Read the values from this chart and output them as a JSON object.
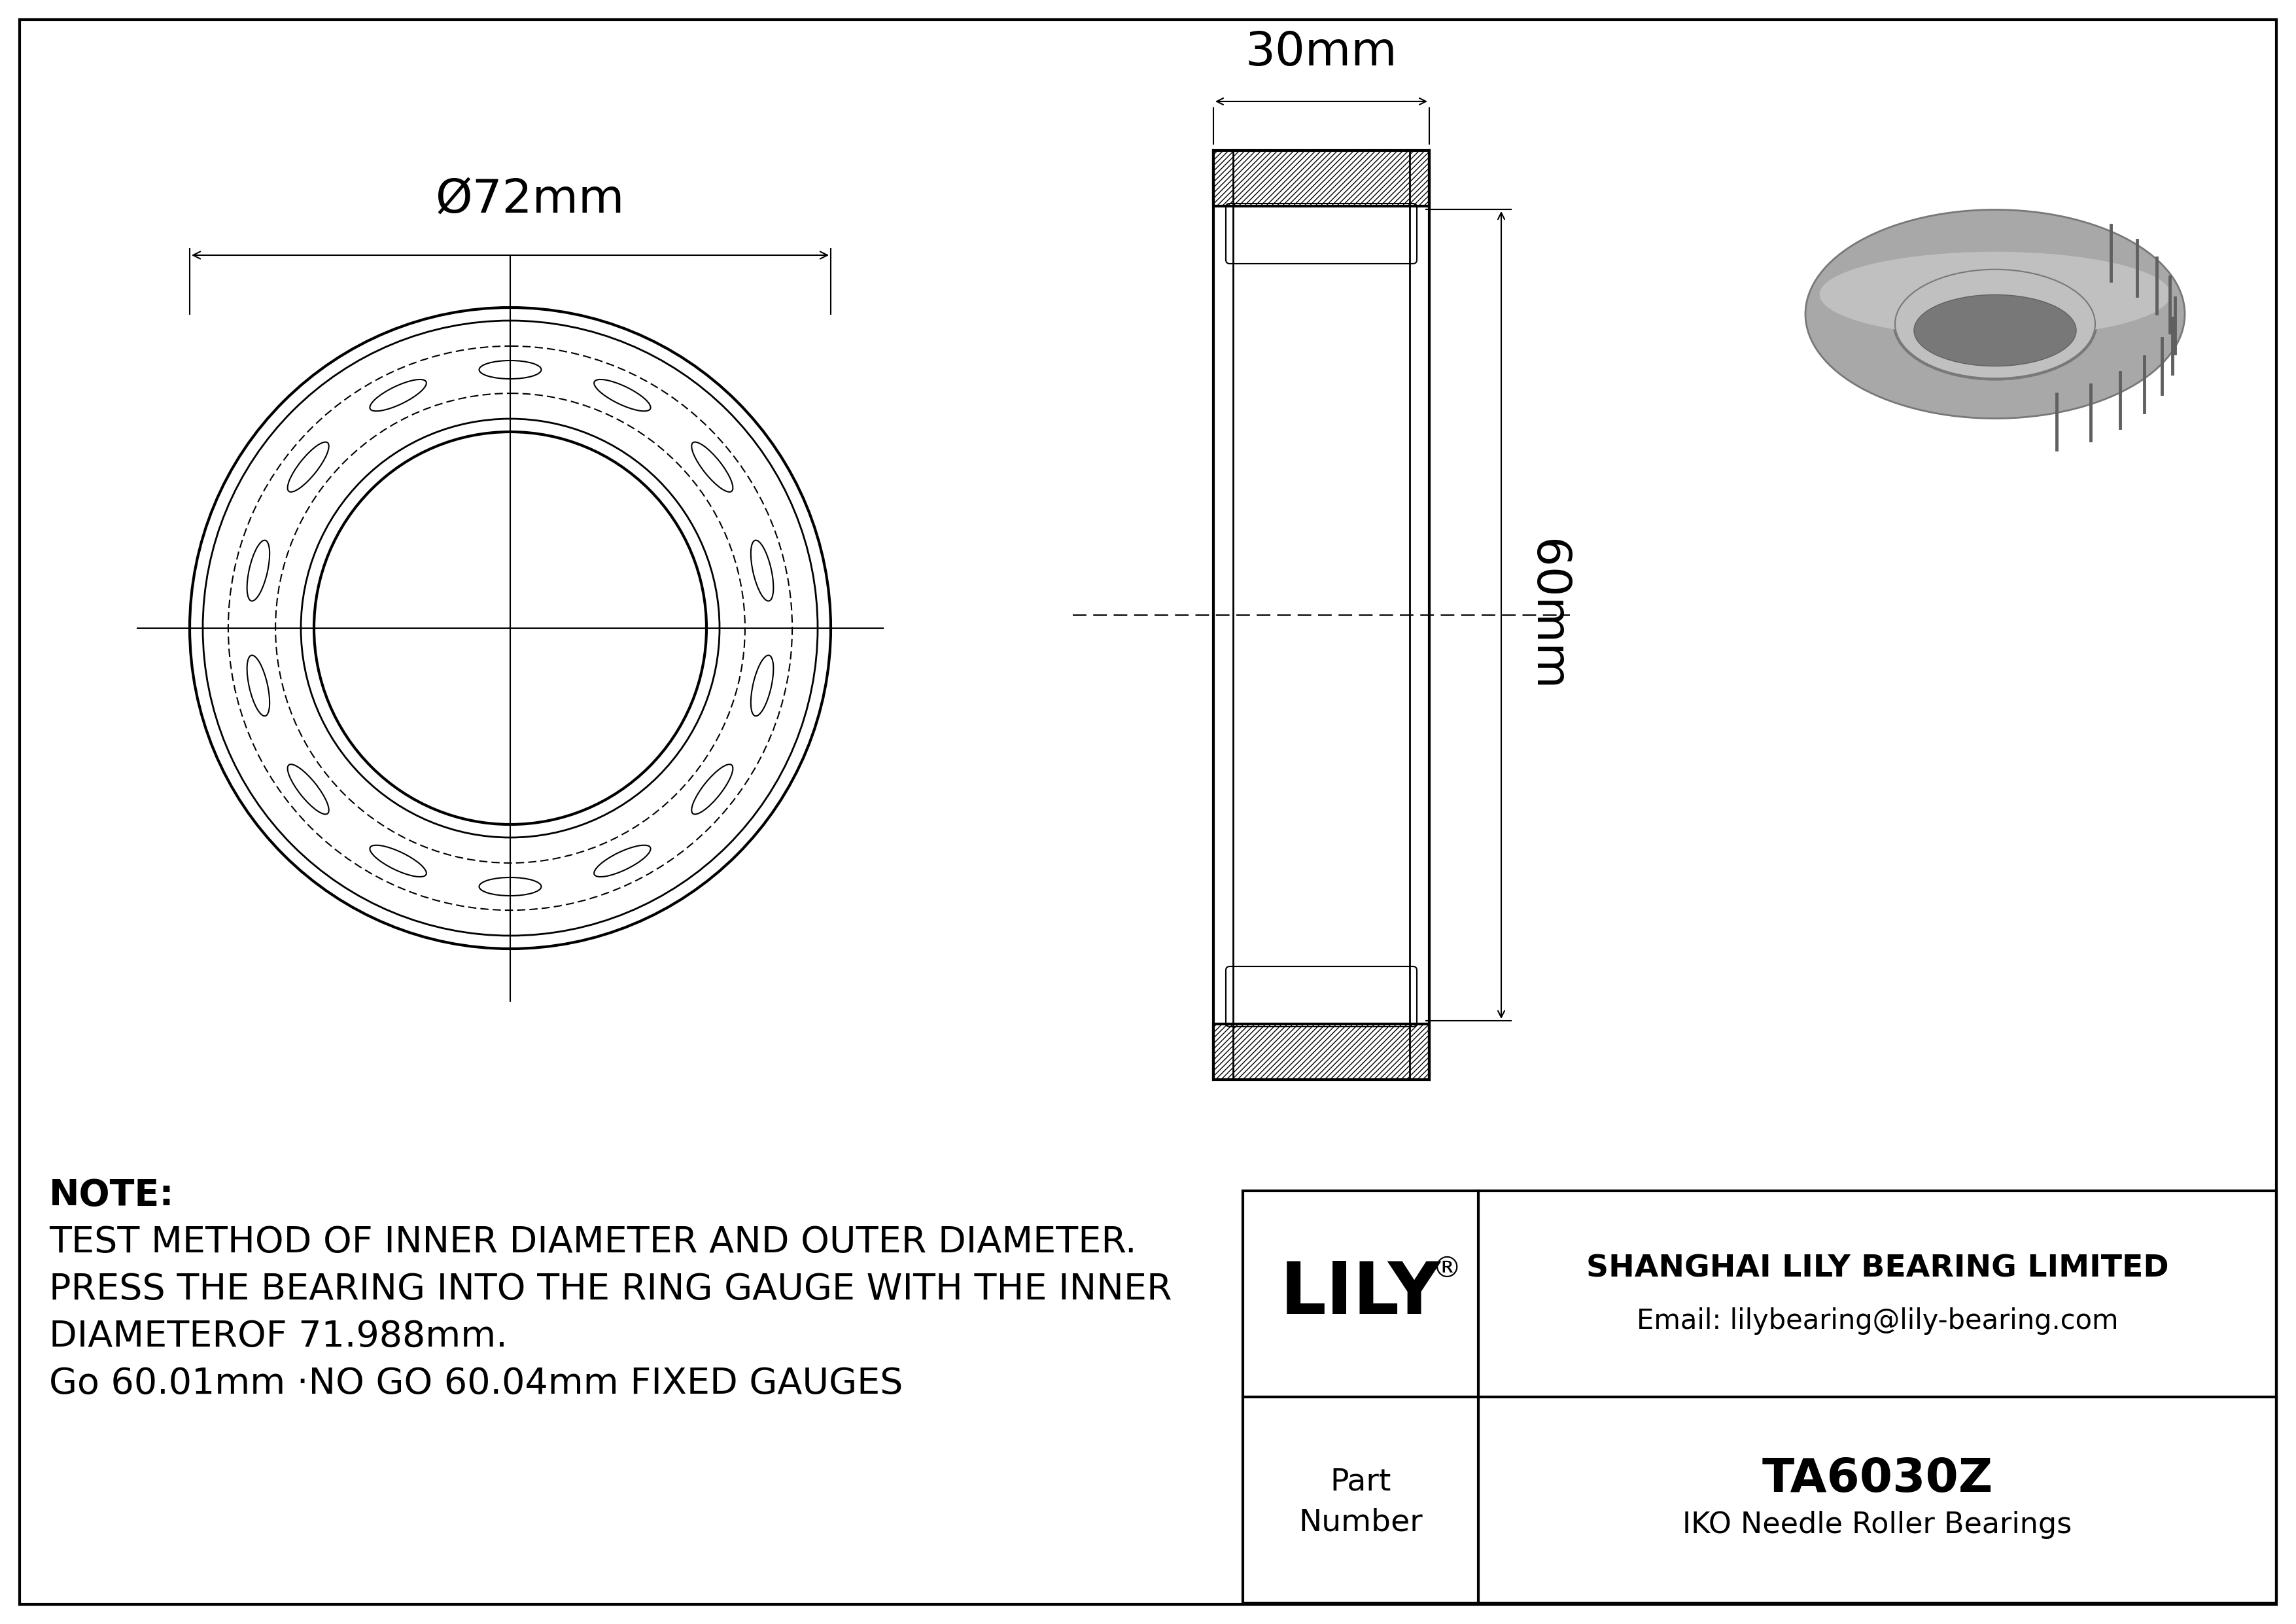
{
  "bg_color": "#ffffff",
  "line_color": "#000000",
  "note_line1": "NOTE:",
  "note_line2": "TEST METHOD OF INNER DIAMETER AND OUTER DIAMETER.",
  "note_line3": "PRESS THE BEARING INTO THE RING GAUGE WITH THE INNER",
  "note_line4": "DIAMETEROF 71.988mm.",
  "note_line5": "Go 60.01mm ·NO GO 60.04mm FIXED GAUGES",
  "dim_outer": "Ø72mm",
  "dim_width": "30mm",
  "dim_height": "60mm",
  "part_number": "TA6030Z",
  "bearing_type": "IKO Needle Roller Bearings",
  "company": "SHANGHAI LILY BEARING LIMITED",
  "email": "Email: lilybearing@lily-bearing.com",
  "num_rollers": 14,
  "lily_text": "LILY",
  "part_label1": "Part",
  "part_label2": "Number"
}
